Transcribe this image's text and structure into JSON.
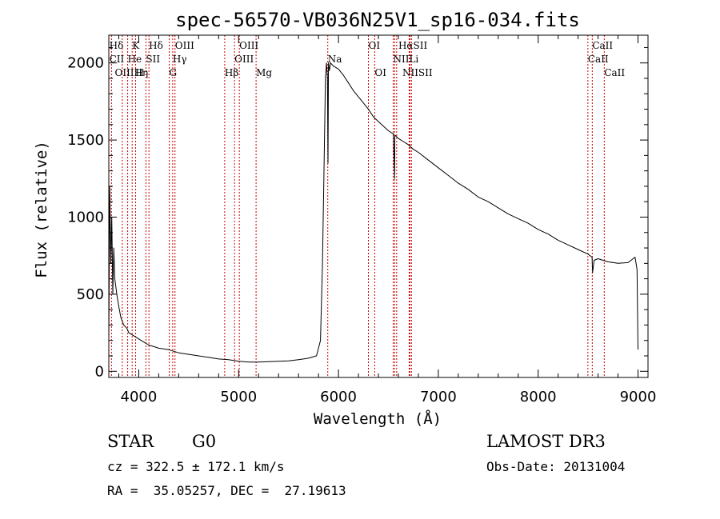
{
  "chart_data": {
    "type": "line",
    "title": "spec-56570-VB036N25V1_sp16-034.fits",
    "xlabel": "Wavelength (Å)",
    "ylabel": "Flux (relative)",
    "xlim": [
      3700,
      9100
    ],
    "ylim": [
      -40,
      2180
    ],
    "xticks": [
      4000,
      5000,
      6000,
      7000,
      8000,
      9000
    ],
    "yticks": [
      0,
      500,
      1000,
      1500,
      2000
    ],
    "xtick_labels": [
      "4000",
      "5000",
      "6000",
      "7000",
      "8000",
      "9000"
    ],
    "ytick_labels": [
      "0",
      "500",
      "1000",
      "1500",
      "2000"
    ],
    "series": [
      {
        "name": "spectrum",
        "x": [
          3700,
          3710,
          3720,
          3730,
          3740,
          3750,
          3760,
          3780,
          3800,
          3820,
          3850,
          3880,
          3900,
          3950,
          4000,
          4050,
          4100,
          4150,
          4200,
          4300,
          4400,
          4500,
          4600,
          4700,
          4800,
          4900,
          5000,
          5100,
          5200,
          5300,
          5400,
          5500,
          5600,
          5700,
          5780,
          5820,
          5840,
          5860,
          5870,
          5880,
          5890,
          5895,
          5900,
          5910,
          5920,
          5950,
          6000,
          6050,
          6100,
          6150,
          6200,
          6250,
          6300,
          6350,
          6400,
          6450,
          6500,
          6550,
          6562,
          6564,
          6570,
          6600,
          6650,
          6700,
          6750,
          6800,
          6900,
          7000,
          7100,
          7200,
          7300,
          7400,
          7500,
          7600,
          7700,
          7800,
          7900,
          8000,
          8100,
          8200,
          8300,
          8400,
          8500,
          8540,
          8545,
          8560,
          8600,
          8650,
          8700,
          8800,
          8900,
          8970,
          8990,
          9000
        ],
        "y": [
          200,
          1200,
          700,
          1000,
          500,
          800,
          600,
          500,
          420,
          350,
          300,
          280,
          250,
          230,
          210,
          190,
          170,
          160,
          150,
          140,
          120,
          110,
          100,
          90,
          80,
          75,
          65,
          60,
          60,
          62,
          65,
          68,
          75,
          85,
          100,
          200,
          700,
          1500,
          1900,
          2000,
          1900,
          1350,
          2000,
          1950,
          2000,
          1980,
          1960,
          1920,
          1870,
          1820,
          1780,
          1740,
          1700,
          1650,
          1620,
          1590,
          1560,
          1540,
          1250,
          1520,
          1530,
          1510,
          1490,
          1470,
          1440,
          1420,
          1370,
          1320,
          1270,
          1220,
          1180,
          1130,
          1100,
          1060,
          1020,
          990,
          960,
          920,
          890,
          850,
          820,
          790,
          760,
          740,
          640,
          720,
          730,
          720,
          710,
          700,
          705,
          740,
          660,
          140
        ]
      }
    ],
    "spectral_lines": [
      {
        "label": "Hδ",
        "x": 3705,
        "row": 0
      },
      {
        "label": "K",
        "x": 3934,
        "row": 0
      },
      {
        "label": "Hδ",
        "x": 4102,
        "row": 0
      },
      {
        "label": "OIII",
        "x": 4363,
        "row": 0
      },
      {
        "label": "OIII",
        "x": 5007,
        "row": 0
      },
      {
        "label": "OI",
        "x": 6300,
        "row": 0
      },
      {
        "label": "HαSII",
        "x": 6600,
        "row": 0
      },
      {
        "label": "CaII",
        "x": 8542,
        "row": 0
      },
      {
        "label": "CII",
        "x": 3705,
        "row": 1
      },
      {
        "label": "He",
        "x": 3889,
        "row": 1
      },
      {
        "label": "SII",
        "x": 4072,
        "row": 1
      },
      {
        "label": "Hγ",
        "x": 4340,
        "row": 1
      },
      {
        "label": "OIII",
        "x": 4959,
        "row": 1
      },
      {
        "label": "Na",
        "x": 5893,
        "row": 1
      },
      {
        "label": "NII",
        "x": 6548,
        "row": 1
      },
      {
        "label": "Li",
        "x": 6708,
        "row": 1
      },
      {
        "label": "CaII",
        "x": 8498,
        "row": 1
      },
      {
        "label": "OIIIHη",
        "x": 3760,
        "row": 2
      },
      {
        "label": "H",
        "x": 3968,
        "row": 2
      },
      {
        "label": "G",
        "x": 4305,
        "row": 2
      },
      {
        "label": "Hβ",
        "x": 4861,
        "row": 2
      },
      {
        "label": "Mg",
        "x": 5175,
        "row": 2
      },
      {
        "label": "OI",
        "x": 6363,
        "row": 2
      },
      {
        "label": "NIISII",
        "x": 6640,
        "row": 2
      },
      {
        "label": "CaII",
        "x": 8662,
        "row": 2
      }
    ],
    "marker_wavelengths": [
      3727,
      3835,
      3889,
      3934,
      3968,
      4072,
      4102,
      4305,
      4340,
      4363,
      4861,
      4959,
      5007,
      5175,
      5893,
      6300,
      6363,
      6548,
      6563,
      6583,
      6708,
      6716,
      6731,
      8498,
      8542,
      8662
    ]
  },
  "info": {
    "object_class": "STAR",
    "subclass": "G0",
    "survey": "LAMOST DR3",
    "cz": "cz = 322.5 ± 172.1 km/s",
    "obs_date": "Obs-Date: 20131004",
    "coords": "RA =  35.05257, DEC =  27.19613"
  },
  "colors": {
    "spectrum": "#000000",
    "markers": "#cc0000",
    "axes": "#000000"
  }
}
